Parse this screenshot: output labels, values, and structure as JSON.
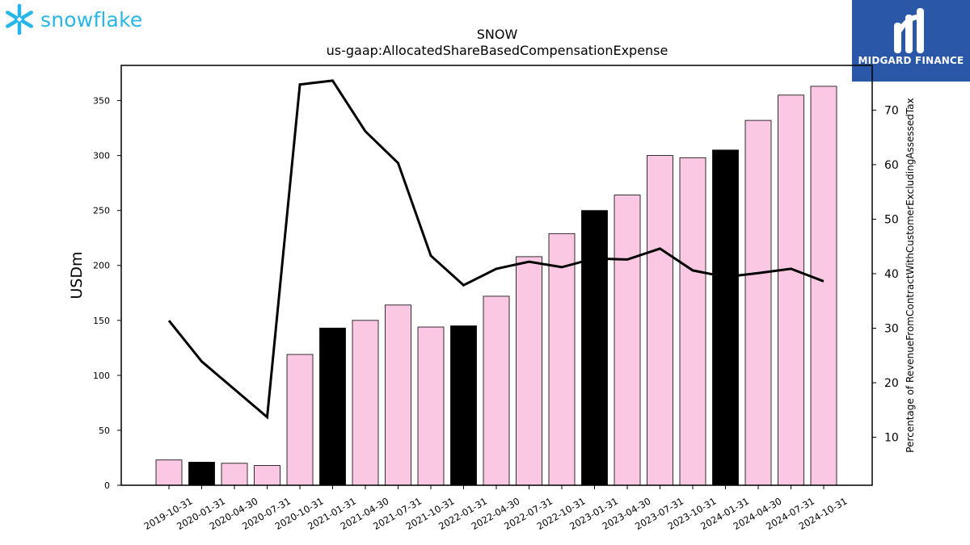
{
  "branding": {
    "left_logo_text": "snowflake",
    "right_logo_text": "MIDGARD FINANCE",
    "left_color": "#29b5e8",
    "right_bg_color": "#2a57a8"
  },
  "chart_data": {
    "type": "bar",
    "title": "SNOW",
    "subtitle": "us-gaap:AllocatedShareBasedCompensationExpense",
    "ylabel": "USDm",
    "y2label": "Percentage of RevenueFromContractWithCustomerExcludingAssessedTax",
    "ylim": [
      0,
      382
    ],
    "y2lim": [
      1.2,
      78.2
    ],
    "yticks": [
      0,
      50,
      100,
      150,
      200,
      250,
      300,
      350
    ],
    "y2ticks": [
      10,
      20,
      30,
      40,
      50,
      60,
      70
    ],
    "grid": false,
    "categories": [
      "2019-10-31",
      "2020-01-31",
      "2020-04-30",
      "2020-07-31",
      "2020-10-31",
      "2021-01-31",
      "2021-04-30",
      "2021-07-31",
      "2021-10-31",
      "2022-01-31",
      "2022-04-30",
      "2022-07-31",
      "2022-10-31",
      "2023-01-31",
      "2023-04-30",
      "2023-07-31",
      "2023-10-31",
      "2024-01-31",
      "2024-04-30",
      "2024-07-31",
      "2024-10-31"
    ],
    "series": [
      {
        "kind": "bar",
        "axis": "left",
        "values": [
          23,
          21,
          20,
          18,
          119,
          143,
          150,
          164,
          144,
          145,
          172,
          208,
          229,
          250,
          264,
          300,
          298,
          305,
          332,
          355,
          363
        ],
        "fiscal_year_end": [
          false,
          true,
          false,
          false,
          false,
          true,
          false,
          false,
          false,
          true,
          false,
          false,
          false,
          true,
          false,
          false,
          false,
          true,
          false,
          false,
          false
        ],
        "color": "#fbc8e3",
        "highlight_color": "#000000"
      },
      {
        "kind": "line",
        "axis": "right",
        "values": [
          31.4,
          23.9,
          18.8,
          13.7,
          74.7,
          75.4,
          66.1,
          60.3,
          43.3,
          37.9,
          40.9,
          42.2,
          41.2,
          42.8,
          42.6,
          44.6,
          40.6,
          39.4,
          40.1,
          40.9,
          38.6
        ],
        "color": "#000000"
      }
    ]
  }
}
